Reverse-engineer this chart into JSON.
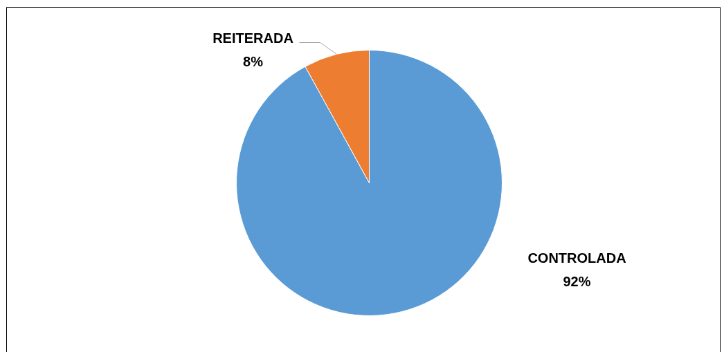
{
  "chart_data": {
    "type": "pie",
    "categories": [
      "CONTROLADA",
      "REITERADA"
    ],
    "values": [
      92,
      8
    ],
    "colors": [
      "#5b9bd5",
      "#ed7d31"
    ],
    "value_labels": [
      "92%",
      "8%"
    ]
  }
}
